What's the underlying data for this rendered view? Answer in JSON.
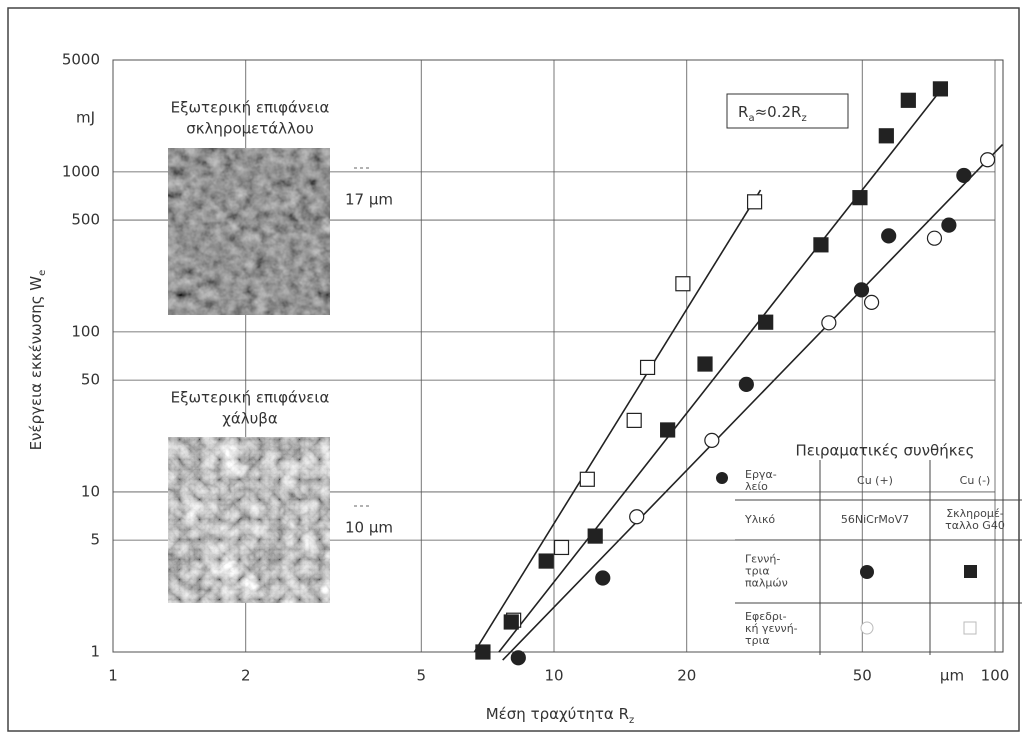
{
  "chart_data": {
    "type": "scatter",
    "log_x": true,
    "log_y": true,
    "grid": true,
    "xlim": [
      1,
      100
    ],
    "ylim": [
      1,
      5000
    ],
    "xticks": [
      1,
      2,
      5,
      10,
      20,
      50,
      100
    ],
    "yticks": [
      1,
      5,
      10,
      50,
      100,
      500,
      1000,
      5000
    ],
    "x_unit": "μm",
    "y_unit": "mJ",
    "x_label": [
      "Μέση τραχύτητα R",
      "z"
    ],
    "y_label": [
      "Ενέργεια εκκένωσης W",
      "e"
    ],
    "annotation": [
      "R",
      "a",
      "≈0.2R",
      "z"
    ],
    "series": [
      {
        "marker": "square",
        "filled": false,
        "color": "#222",
        "x": [
          8.1,
          10.4,
          11.9,
          15.2,
          16.3,
          19.6,
          28.5
        ],
        "values": [
          1.58,
          4.5,
          12,
          28,
          60,
          200,
          650
        ]
      },
      {
        "marker": "square",
        "filled": true,
        "color": "#222",
        "x": [
          6.9,
          8.0,
          9.6,
          12.4,
          18.1,
          22.0,
          30.2,
          40.3,
          49.4,
          56.7,
          63.6,
          75.2
        ],
        "values": [
          1,
          1.54,
          3.7,
          5.3,
          24.4,
          63,
          115,
          350,
          690,
          1680,
          2800,
          3300
        ]
      },
      {
        "marker": "circle",
        "filled": true,
        "color": "#222",
        "x": [
          8.3,
          12.9,
          27.3,
          49.8,
          57.4,
          78.6,
          85.0
        ],
        "values": [
          0.92,
          2.9,
          47,
          183,
          398,
          465,
          950
        ]
      },
      {
        "marker": "circle",
        "filled": false,
        "color": "#222",
        "x": [
          15.4,
          22.8,
          42.0,
          52.5,
          72.9,
          96.2
        ],
        "values": [
          7,
          21,
          114,
          153,
          385,
          1190
        ]
      }
    ],
    "fit_lines": [
      {
        "color": "#222",
        "x": [
          6.6,
          29.4
        ],
        "values": [
          1,
          770
        ]
      },
      {
        "color": "#222",
        "x": [
          7.5,
          77
        ],
        "values": [
          1,
          3500
        ]
      },
      {
        "color": "#222",
        "x": [
          7.65,
          104
        ],
        "values": [
          0.89,
          1480
        ]
      }
    ],
    "insets": [
      {
        "caption": [
          "Εξωτερική επιφάνεια",
          "σκληρομετάλλου"
        ],
        "scale": "17 μm"
      },
      {
        "caption": [
          "Εξωτερική επιφάνεια",
          "χάλυβα"
        ],
        "scale": "10 μm"
      }
    ],
    "table": {
      "title": "Πειραματικές συνθήκες",
      "header": {
        "label": [
          "Εργα-",
          "λείο"
        ],
        "cells": [
          [
            "Cu (+)"
          ],
          [
            "Cu (-)"
          ]
        ]
      },
      "rows": [
        {
          "label": [
            "Υλικό"
          ],
          "cells": [
            [
              "56NiCrMoV7"
            ],
            [
              "Σκληρομέ-",
              "ταλλο G40"
            ]
          ]
        },
        {
          "label": [
            "Γεννή-",
            "τρια",
            "παλμών"
          ]
        },
        {
          "label": [
            "Εφεδρι-",
            "κή γεννή-",
            "τρια"
          ]
        }
      ]
    }
  }
}
